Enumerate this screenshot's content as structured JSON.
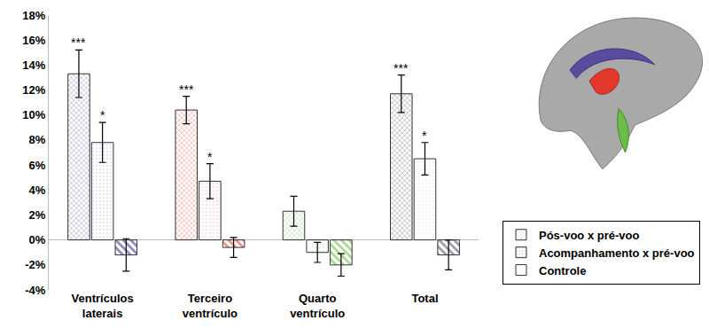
{
  "chart_data": {
    "type": "bar",
    "categories": [
      "Ventrículos laterais",
      "Terceiro ventrículo",
      "Quarto ventrículo",
      "Total"
    ],
    "series": [
      {
        "name": "Pós-voo x pré-voo",
        "color": "#3f3f3f",
        "colors": [
          "#5a4b9e",
          "#e2382c",
          "#6bbd48",
          "#3f3f3f"
        ],
        "values": [
          13.3,
          10.4,
          2.3,
          11.7
        ],
        "errors": [
          1.9,
          1.1,
          1.2,
          1.5
        ],
        "significance": [
          "***",
          "***",
          null,
          "***"
        ]
      },
      {
        "name": "Acompanhamento x pré-voo",
        "color": "#e6e6e6",
        "colors": [
          "#c9c3e3",
          "#f4c2bb",
          "#c8e6b8",
          "#e6e6e6"
        ],
        "values": [
          7.8,
          4.7,
          -1.0,
          6.5
        ],
        "errors": [
          1.6,
          1.4,
          0.8,
          1.3
        ],
        "significance": [
          "*",
          "*",
          null,
          "*"
        ]
      },
      {
        "name": "Controle",
        "color": "#9a9aa8",
        "colors": [
          "#8c84bf",
          "#ef8a80",
          "#a5d88c",
          "#9a9aa8"
        ],
        "values": [
          -1.2,
          -0.6,
          -2.0,
          -1.2
        ],
        "errors": [
          1.3,
          0.8,
          0.9,
          1.2
        ],
        "significance": [
          null,
          null,
          null,
          null
        ]
      }
    ],
    "ylim": [
      -4,
      18
    ],
    "yticks": [
      {
        "value": -4,
        "label": "-4%"
      },
      {
        "value": -2,
        "label": "-2%"
      },
      {
        "value": 0,
        "label": "0%"
      },
      {
        "value": 2,
        "label": "2%"
      },
      {
        "value": 4,
        "label": "4%"
      },
      {
        "value": 6,
        "label": "6%"
      },
      {
        "value": 8,
        "label": "8%"
      },
      {
        "value": 10,
        "label": "10%"
      },
      {
        "value": 12,
        "label": "12%"
      },
      {
        "value": 14,
        "label": "14%"
      },
      {
        "value": 16,
        "label": "16%"
      },
      {
        "value": 18,
        "label": "18%"
      }
    ],
    "grid": false,
    "legend": "lower right"
  }
}
